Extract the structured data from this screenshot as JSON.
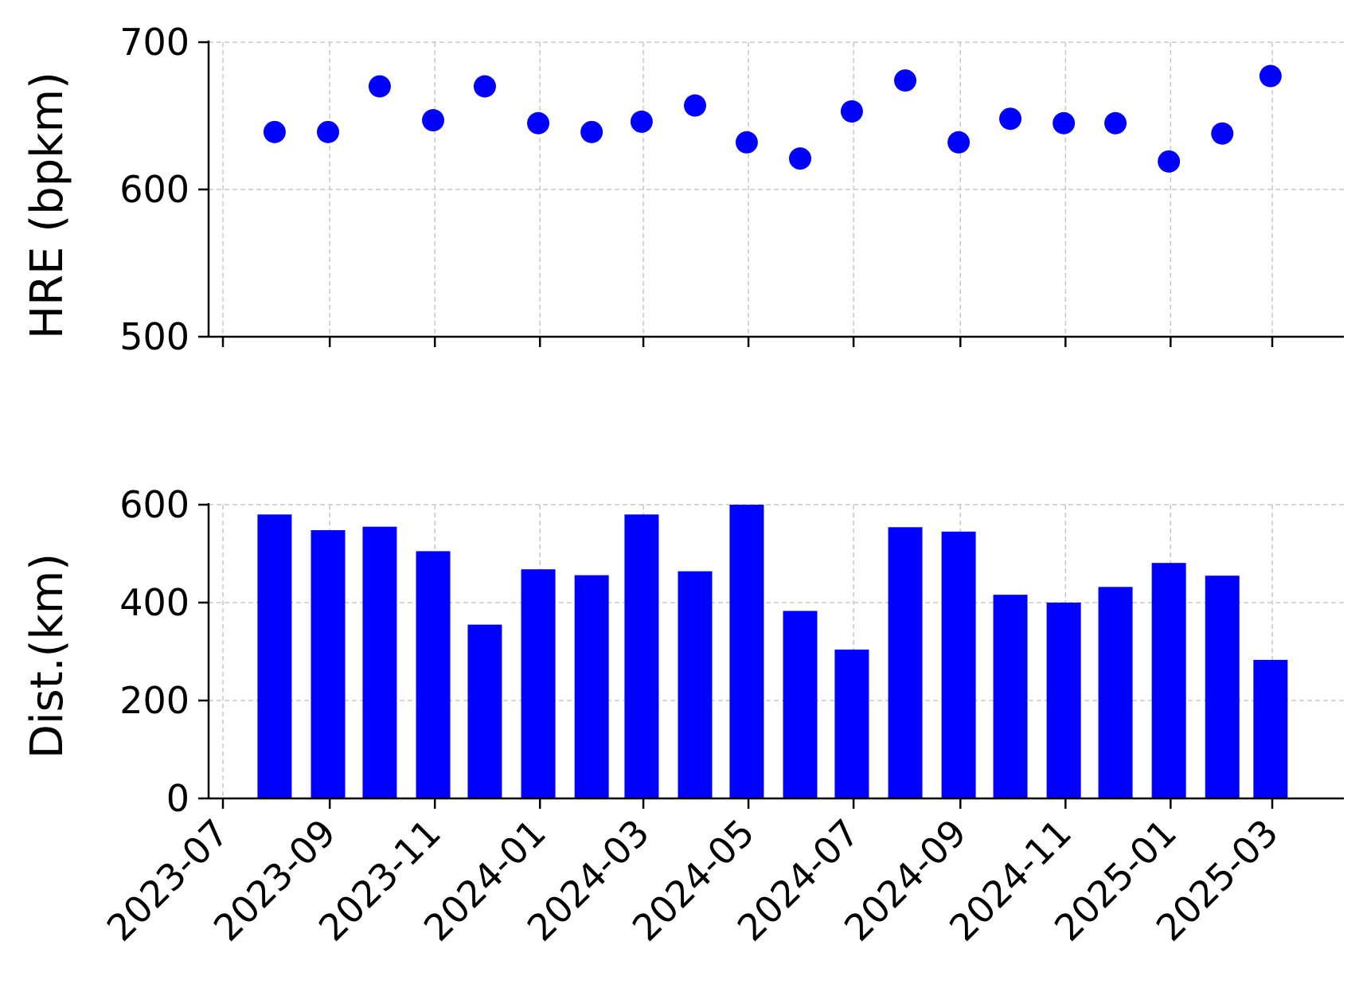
{
  "chart_data": [
    {
      "type": "scatter",
      "ylabel": "HRE (bpkm)",
      "xlabel": "",
      "ylim": [
        500,
        700
      ],
      "yticks": [
        500,
        600,
        700
      ],
      "grid": true,
      "color": "#0000ff",
      "x": [
        "2023-07-31",
        "2023-08-31",
        "2023-09-30",
        "2023-10-31",
        "2023-11-30",
        "2023-12-31",
        "2024-01-31",
        "2024-02-29",
        "2024-03-31",
        "2024-04-30",
        "2024-05-31",
        "2024-06-30",
        "2024-07-31",
        "2024-08-31",
        "2024-09-30",
        "2024-10-31",
        "2024-11-30",
        "2024-12-31",
        "2025-01-31",
        "2025-02-28"
      ],
      "values": [
        639,
        639,
        670,
        647,
        670,
        645,
        639,
        646,
        657,
        632,
        621,
        653,
        674,
        632,
        648,
        645,
        645,
        619,
        638,
        677
      ]
    },
    {
      "type": "bar",
      "ylabel": "Dist.(km)",
      "xlabel": "",
      "ylim": [
        0,
        600
      ],
      "yticks": [
        0,
        200,
        400,
        600
      ],
      "grid": true,
      "color": "#0000ff",
      "x": [
        "2023-07-31",
        "2023-08-31",
        "2023-09-30",
        "2023-10-31",
        "2023-11-30",
        "2023-12-31",
        "2024-01-31",
        "2024-02-29",
        "2024-03-31",
        "2024-04-30",
        "2024-05-31",
        "2024-06-30",
        "2024-07-31",
        "2024-08-31",
        "2024-09-30",
        "2024-10-31",
        "2024-11-30",
        "2024-12-31",
        "2025-01-31",
        "2025-02-28"
      ],
      "values": [
        580,
        548,
        555,
        505,
        355,
        468,
        456,
        580,
        464,
        600,
        383,
        304,
        554,
        545,
        416,
        400,
        432,
        481,
        455,
        283
      ]
    }
  ],
  "xticks": [
    "2023-07",
    "2023-09",
    "2023-11",
    "2024-01",
    "2024-03",
    "2024-05",
    "2024-07",
    "2024-09",
    "2024-11",
    "2025-01",
    "2025-03"
  ]
}
